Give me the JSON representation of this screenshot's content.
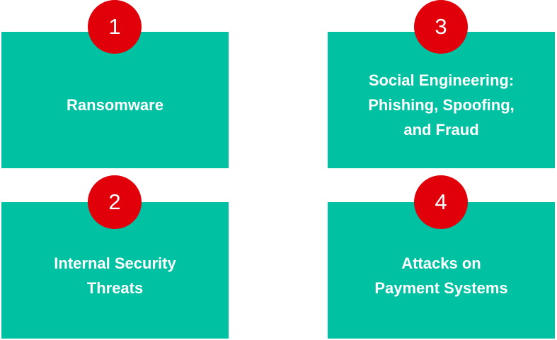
{
  "colors": {
    "card_background": "#00c2a3",
    "badge_background": "#e1000a",
    "text": "#ffffff"
  },
  "items": [
    {
      "number": "1",
      "label": "Ransomware"
    },
    {
      "number": "2",
      "label": "Internal Security\nThreats"
    },
    {
      "number": "3",
      "label": "Social Engineering:\nPhishing, Spoofing,\nand Fraud"
    },
    {
      "number": "4",
      "label": "Attacks on\nPayment Systems"
    }
  ]
}
